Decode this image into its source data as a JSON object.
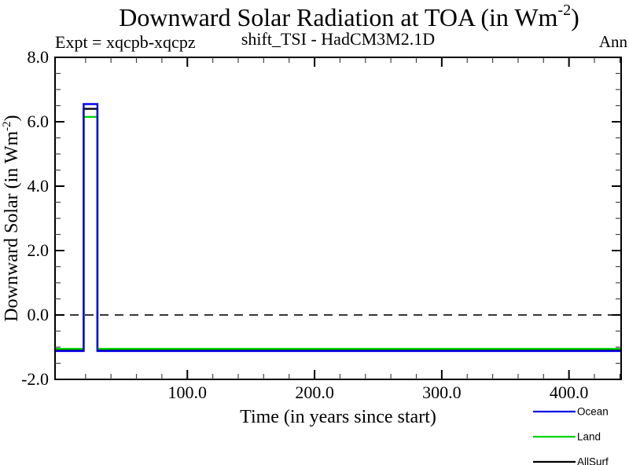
{
  "header": {
    "title_main": "Downward Solar Radiation at TOA (in Wm",
    "title_sup": "-2",
    "title_close": ")",
    "subtitle_left": "Expt = xqcpb-xqcpz",
    "subtitle_center": "shift_TSI - HadCM3M2.1D",
    "subtitle_right": "Ann"
  },
  "axes": {
    "ylabel_main": "Downward Solar (in Wm",
    "ylabel_sup": "-2",
    "ylabel_close": ")"
  },
  "chart_data": {
    "type": "line",
    "title": "Downward Solar Radiation at TOA (in Wm^-2)",
    "subtitle": "shift_TSI - HadCM3M2.1D",
    "experiment": "Expt = xqcpb-xqcpz",
    "season": "Ann",
    "xlabel": "Time (in years since start)",
    "ylabel": "Downward Solar (in Wm^-2)",
    "xlim": [
      -4,
      441
    ],
    "ylim": [
      -2,
      8
    ],
    "grid": false,
    "legend_position": "bottom-right",
    "x_ticks": [
      {
        "value": 100,
        "label": "100.0"
      },
      {
        "value": 200,
        "label": "200.0"
      },
      {
        "value": 300,
        "label": "300.0"
      },
      {
        "value": 400,
        "label": "400.0"
      }
    ],
    "x_minor": {
      "from": 20,
      "to": 440,
      "step": 20
    },
    "y_ticks": [
      {
        "value": 8,
        "label": "8.0"
      },
      {
        "value": 6,
        "label": "6.0"
      },
      {
        "value": 4,
        "label": "4.0"
      },
      {
        "value": 2,
        "label": "2.0"
      },
      {
        "value": 0,
        "label": "0.0"
      },
      {
        "value": -2,
        "label": "-2.0"
      }
    ],
    "y_minor": {
      "from": -1.5,
      "to": 7.5,
      "step": 0.5
    },
    "zero_line": {
      "y": 0,
      "style": "dashed",
      "color": "#1a1a1a"
    },
    "series": [
      {
        "name": "Ocean",
        "color": "#0000ee",
        "baseline": -1.12,
        "spike_value": 6.55,
        "spike_start": 18.5,
        "spike_end": 29.3,
        "points": [
          [
            -4,
            -1.12
          ],
          [
            18.5,
            -1.12
          ],
          [
            18.5,
            6.55
          ],
          [
            29.3,
            6.55
          ],
          [
            29.3,
            -1.12
          ],
          [
            441,
            -1.12
          ]
        ]
      },
      {
        "name": "Land",
        "color": "#00d400",
        "baseline": -1.05,
        "spike_value": 6.15,
        "spike_start": 18.5,
        "spike_end": 29.3,
        "points": [
          [
            -4,
            -1.05
          ],
          [
            18.5,
            -1.05
          ],
          [
            18.5,
            6.15
          ],
          [
            29.3,
            6.15
          ],
          [
            29.3,
            -1.05
          ],
          [
            441,
            -1.05
          ]
        ]
      },
      {
        "name": "AllSurf",
        "color": "#000000",
        "baseline": -1.09,
        "spike_value": 6.4,
        "spike_start": 18.5,
        "spike_end": 29.3,
        "points": [
          [
            -4,
            -1.09
          ],
          [
            18.5,
            -1.09
          ],
          [
            18.5,
            6.4
          ],
          [
            29.3,
            6.4
          ],
          [
            29.3,
            -1.09
          ],
          [
            441,
            -1.09
          ]
        ]
      }
    ],
    "draw_order": [
      "AllSurf",
      "Land",
      "Ocean"
    ]
  }
}
